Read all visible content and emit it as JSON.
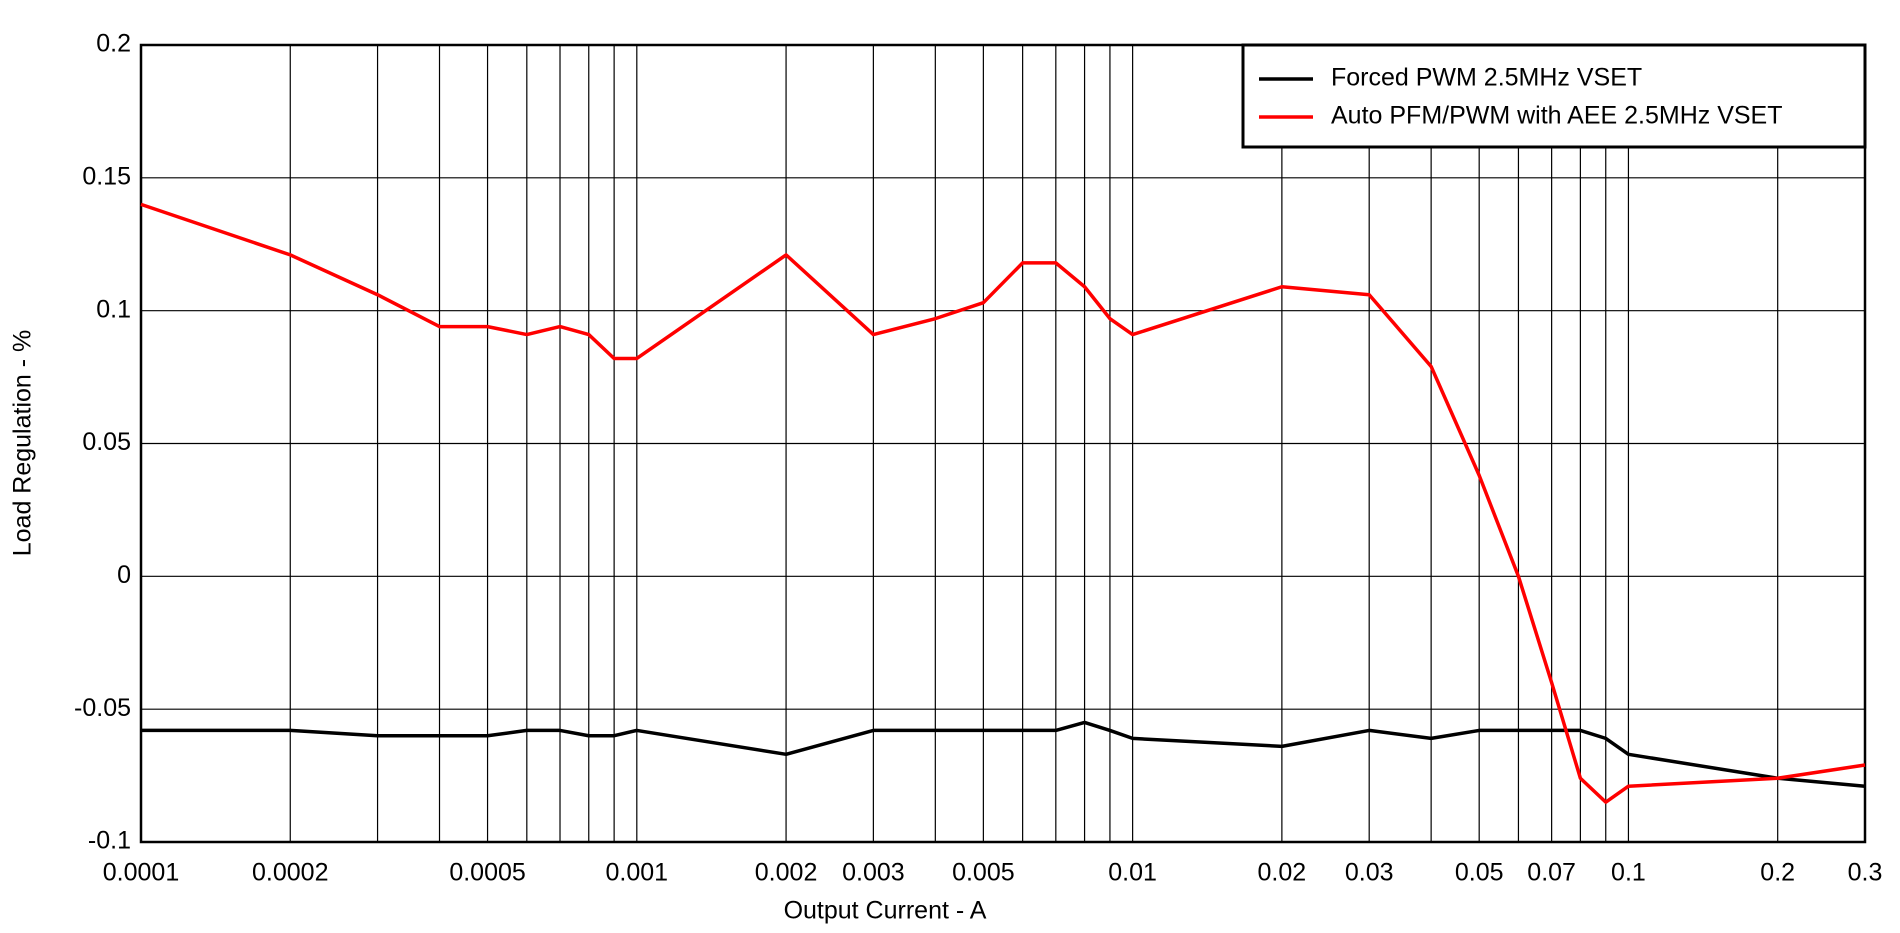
{
  "chart_data": {
    "type": "line",
    "xlabel": "Output Current - A",
    "ylabel": "Load Regulation - %",
    "xscale": "log",
    "x": [
      0.0001,
      0.0002,
      0.0003,
      0.0004,
      0.0005,
      0.0006,
      0.0007,
      0.0008,
      0.0009,
      0.001,
      0.002,
      0.003,
      0.004,
      0.005,
      0.006,
      0.007,
      0.008,
      0.009,
      0.01,
      0.02,
      0.03,
      0.04,
      0.05,
      0.06,
      0.07,
      0.08,
      0.09,
      0.1,
      0.2,
      0.3
    ],
    "series": [
      {
        "name": "Forced PWM 2.5MHz VSET",
        "color": "#000000",
        "values": [
          -0.058,
          -0.058,
          -0.06,
          -0.06,
          -0.06,
          -0.058,
          -0.058,
          -0.06,
          -0.06,
          -0.058,
          -0.067,
          -0.058,
          -0.058,
          -0.058,
          -0.058,
          -0.058,
          -0.055,
          -0.058,
          -0.061,
          -0.064,
          -0.058,
          -0.061,
          -0.058,
          -0.058,
          -0.058,
          -0.058,
          -0.061,
          -0.067,
          -0.076,
          -0.079
        ]
      },
      {
        "name": "Auto PFM/PWM with AEE 2.5MHz VSET",
        "color": "#ff0000",
        "values": [
          0.14,
          0.121,
          0.106,
          0.094,
          0.094,
          0.091,
          0.094,
          0.091,
          0.082,
          0.082,
          0.121,
          0.091,
          0.097,
          0.103,
          0.118,
          0.118,
          0.109,
          0.097,
          0.091,
          0.109,
          0.106,
          0.079,
          0.038,
          0,
          -0.04,
          -0.076,
          -0.085,
          -0.079,
          -0.076,
          -0.071
        ]
      }
    ],
    "xlim": [
      0.0001,
      0.3
    ],
    "xticks": [
      0.0001,
      0.0002,
      0.0005,
      0.001,
      0.002,
      0.003,
      0.005,
      0.01,
      0.02,
      0.03,
      0.05,
      0.07,
      0.1,
      0.2,
      0.3
    ],
    "xminor": [
      0.0003,
      0.0004,
      0.0006,
      0.0007,
      0.0008,
      0.0009,
      0.004,
      0.006,
      0.007,
      0.008,
      0.009,
      0.04,
      0.06,
      0.08,
      0.09
    ],
    "ylim": [
      -0.1,
      0.2
    ],
    "yticks": [
      -0.1,
      -0.05,
      0,
      0.05,
      0.1,
      0.15,
      0.2
    ],
    "grid": true,
    "legend": "top-right"
  }
}
